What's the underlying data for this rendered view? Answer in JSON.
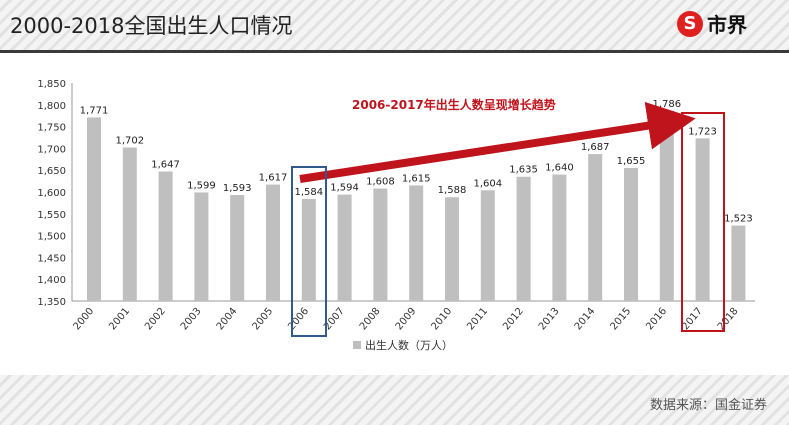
{
  "header": {
    "title": "2000-2018全国出生人口情况",
    "logo_text": "市界",
    "logo_icon": "S"
  },
  "footer": {
    "source": "数据来源：国金证券"
  },
  "colors": {
    "bar": "#bfbfbf",
    "arrow": "#c0141c",
    "highlight_2006": "#2e5a8c",
    "highlight_2017": "#c0141c"
  },
  "chart_data": {
    "type": "bar",
    "categories": [
      "2000",
      "2001",
      "2002",
      "2003",
      "2004",
      "2005",
      "2006",
      "2007",
      "2008",
      "2009",
      "2010",
      "2011",
      "2012",
      "2013",
      "2014",
      "2015",
      "2016",
      "2017",
      "2018"
    ],
    "series": [
      {
        "name": "出生人数（万人）",
        "values": [
          1771,
          1702,
          1647,
          1599,
          1593,
          1617,
          1584,
          1594,
          1608,
          1615,
          1588,
          1604,
          1635,
          1640,
          1687,
          1655,
          1786,
          1723,
          1523
        ]
      }
    ],
    "yticks": [
      1350,
      1400,
      1450,
      1500,
      1550,
      1600,
      1650,
      1700,
      1750,
      1800,
      1850
    ],
    "ylim": [
      1350,
      1850
    ],
    "legend": "bottom",
    "annotation": "2006-2017年出生人数呈现增长趋势",
    "highlighted": [
      "2006",
      "2017"
    ]
  }
}
